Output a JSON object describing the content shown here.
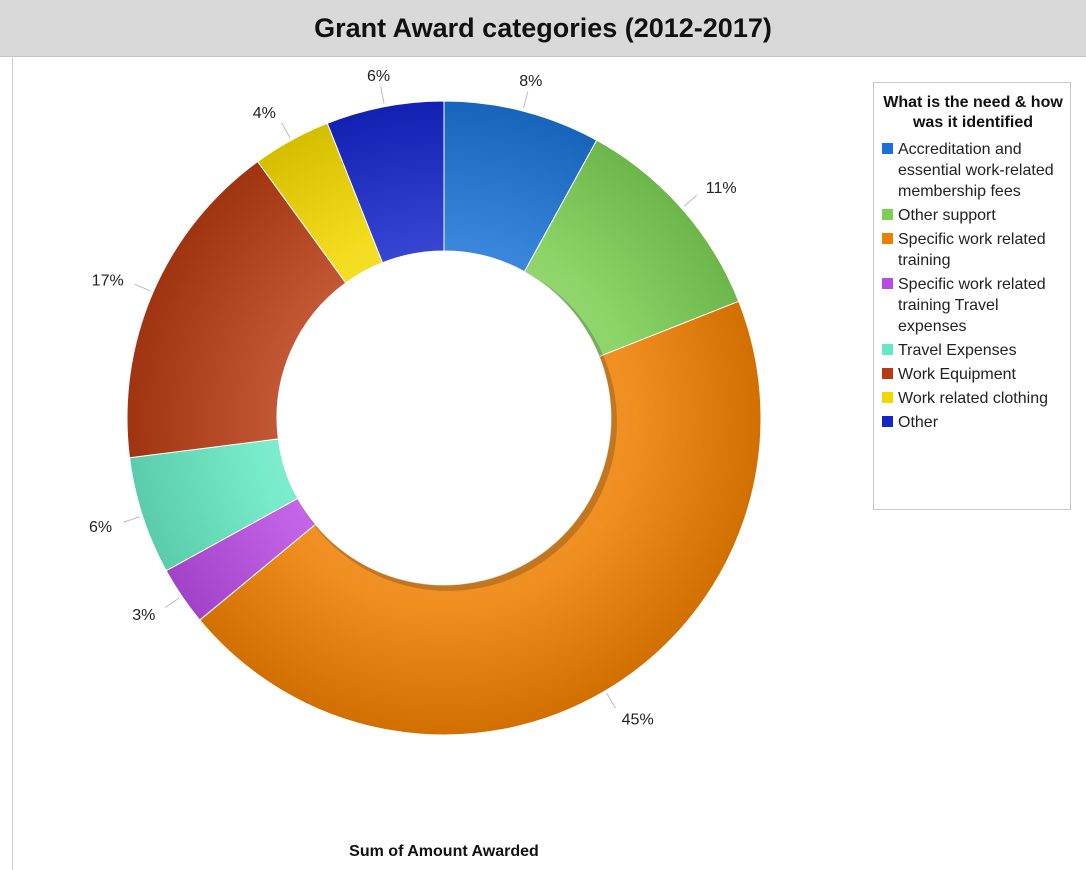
{
  "chart_data": {
    "type": "pie",
    "donut": true,
    "title": "Grant Award categories (2012-2017)",
    "xlabel": "Sum of Amount Awarded",
    "legend_title": "What is the need & how was it identified",
    "legend_position": "top-right",
    "slices": [
      {
        "name": "Accreditation and essential work-related membership fees",
        "value": 8,
        "label": "8%",
        "color": "#1a72d4"
      },
      {
        "name": "Other support",
        "value": 11,
        "label": "11%",
        "color": "#7ccf55"
      },
      {
        "name": "Specific work related training",
        "value": 45,
        "label": "45%",
        "color": "#ee7f00"
      },
      {
        "name": "Specific work related training Travel expenses",
        "value": 3,
        "label": "3%",
        "color": "#b84be3"
      },
      {
        "name": "Travel Expenses",
        "value": 6,
        "label": "6%",
        "color": "#66e8c4"
      },
      {
        "name": "Work Equipment",
        "value": 17,
        "label": "17%",
        "color": "#b63a12"
      },
      {
        "name": "Work related clothing",
        "value": 4,
        "label": "4%",
        "color": "#f2d800"
      },
      {
        "name": "Other",
        "value": 6,
        "label": "6%",
        "color": "#1526c9"
      }
    ]
  }
}
